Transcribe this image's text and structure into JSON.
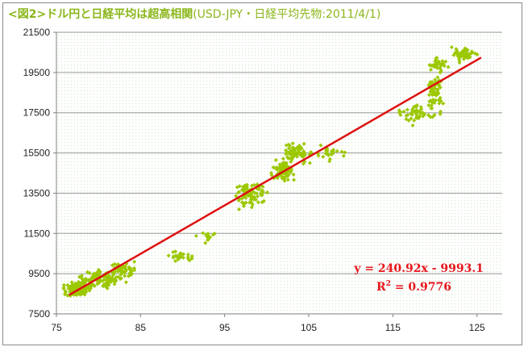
{
  "title_main": "<図2>ドル円と日経平均は超高相関",
  "title_sub": "(USD-JPY・日経平均先物:2011/4/1)",
  "colors": {
    "accent": "#8ab61a",
    "points": "#9cc800",
    "trend": "#dd1010",
    "equation": "#e8161c"
  },
  "chart_data": {
    "type": "scatter",
    "title": "<図2>ドル円と日経平均は超高相関(USD-JPY・日経平均先物:2011/4/1)",
    "xlabel": "",
    "ylabel": "",
    "xlim": [
      75,
      128
    ],
    "ylim": [
      7500,
      21500
    ],
    "xticks": [
      75,
      85,
      95,
      105,
      115,
      125
    ],
    "yticks": [
      7500,
      9500,
      11500,
      13500,
      15500,
      17500,
      19500,
      21500
    ],
    "grid": true,
    "legend": "none",
    "trendline": {
      "slope": 240.92,
      "intercept": -9993.1,
      "x_range": [
        76.5,
        125.5
      ]
    },
    "equation_text": "y = 240.92x - 9993.1",
    "r2_label": "R",
    "r2_sup": "2",
    "r2_value": " = 0.9776",
    "clusters": [
      {
        "center": [
          77.5,
          8750
        ],
        "spread": [
          1.3,
          280
        ],
        "count": 130
      },
      {
        "center": [
          80.2,
          9200
        ],
        "spread": [
          1.8,
          300
        ],
        "count": 110
      },
      {
        "center": [
          83.0,
          9700
        ],
        "spread": [
          1.2,
          250
        ],
        "count": 55
      },
      {
        "center": [
          89.5,
          10400
        ],
        "spread": [
          1.6,
          200
        ],
        "count": 25
      },
      {
        "center": [
          93.0,
          11300
        ],
        "spread": [
          0.8,
          220
        ],
        "count": 15
      },
      {
        "center": [
          98.0,
          13400
        ],
        "spread": [
          1.4,
          450
        ],
        "count": 90
      },
      {
        "center": [
          102.0,
          14600
        ],
        "spread": [
          1.0,
          400
        ],
        "count": 100
      },
      {
        "center": [
          103.5,
          15500
        ],
        "spread": [
          1.2,
          350
        ],
        "count": 80
      },
      {
        "center": [
          107.5,
          15500
        ],
        "spread": [
          1.2,
          350
        ],
        "count": 25
      },
      {
        "center": [
          117.5,
          17500
        ],
        "spread": [
          1.3,
          350
        ],
        "count": 45
      },
      {
        "center": [
          120.0,
          18500
        ],
        "spread": [
          0.8,
          700
        ],
        "count": 60
      },
      {
        "center": [
          120.5,
          19900
        ],
        "spread": [
          0.8,
          250
        ],
        "count": 30
      },
      {
        "center": [
          123.5,
          20400
        ],
        "spread": [
          1.1,
          250
        ],
        "count": 60
      }
    ]
  }
}
